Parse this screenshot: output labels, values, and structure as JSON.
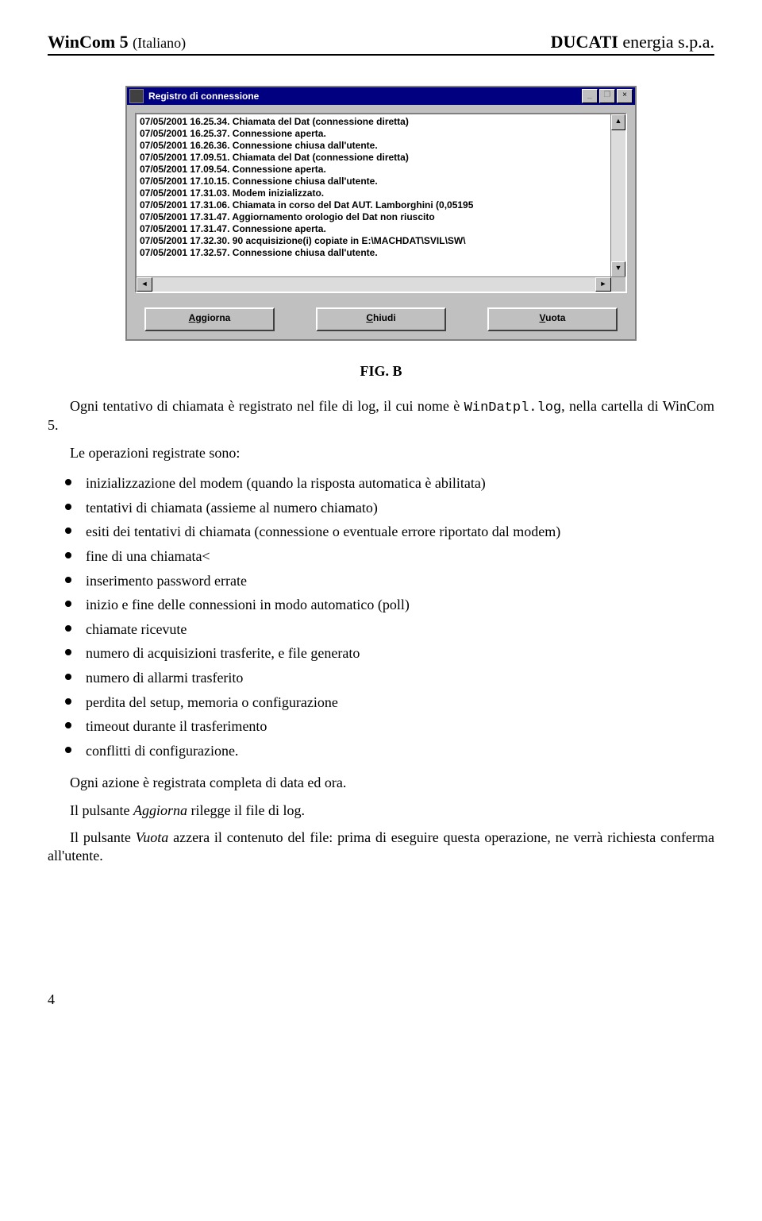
{
  "header": {
    "product": "WinCom 5",
    "lang": "(Italiano)",
    "company_brand": "DUCATI",
    "company_suffix": " energia s.p.a."
  },
  "window": {
    "title": "Registro di connessione",
    "log_lines": [
      "07/05/2001 16.25.34. Chiamata del Dat (connessione diretta)",
      "07/05/2001 16.25.37. Connessione aperta.",
      "07/05/2001 16.26.36. Connessione chiusa dall'utente.",
      "07/05/2001 17.09.51. Chiamata del Dat (connessione diretta)",
      "07/05/2001 17.09.54. Connessione aperta.",
      "07/05/2001 17.10.15. Connessione chiusa dall'utente.",
      "07/05/2001 17.31.03. Modem inizializzato.",
      "07/05/2001 17.31.06. Chiamata in corso del Dat  AUT.  Lamborghini (0,05195",
      "07/05/2001 17.31.47. Aggiornamento orologio del Dat non riuscito",
      "07/05/2001 17.31.47. Connessione aperta.",
      "07/05/2001 17.32.30. 90 acquisizione(i) copiate in E:\\MACHDAT\\SVIL\\SW\\",
      "07/05/2001 17.32.57. Connessione chiusa dall'utente."
    ],
    "buttons": {
      "refresh_u": "A",
      "refresh_rest": "ggiorna",
      "close_u": "C",
      "close_rest": "hiudi",
      "empty_u": "V",
      "empty_rest": "uota"
    },
    "title_controls": {
      "min": "_",
      "max": "❐",
      "close": "×"
    }
  },
  "figure_caption": "FIG. B",
  "intro_part1": "Ogni tentativo di chiamata è registrato nel file di log, il cui nome è ",
  "intro_code": "WinDatpl.log",
  "intro_part2": ", nella cartella di WinCom 5.",
  "ops_intro": "Le operazioni registrate sono:",
  "bullets": [
    "inizializzazione del modem (quando la risposta automatica è abilitata)",
    "tentativi di chiamata (assieme al numero chiamato)",
    "esiti dei tentativi di chiamata (connessione o eventuale errore riportato dal modem)",
    "fine di una chiamata<",
    "inserimento password errate",
    "inizio e fine delle connessioni in modo automatico (poll)",
    "chiamate ricevute",
    "numero di acquisizioni trasferite, e file generato",
    "numero di allarmi trasferito",
    "perdita del setup, memoria o configurazione",
    "timeout durante il trasferimento",
    "conflitti di configurazione."
  ],
  "tail_paragraphs": {
    "p1": "Ogni azione è registrata completa di data ed ora.",
    "p2_pre": "Il pulsante ",
    "p2_em": "Aggiorna",
    "p2_post": " rilegge il file di log.",
    "p3_pre": "Il pulsante ",
    "p3_em": "Vuota",
    "p3_post": " azzera il contenuto del file: prima di eseguire questa operazione, ne verrà richiesta conferma all'utente."
  },
  "page_number": "4",
  "styling": {
    "page_bg": "#ffffff",
    "text_color": "#000000",
    "rule_color": "#000000",
    "titlebar_bg": "#000080",
    "titlebar_fg": "#ffffff",
    "window_face": "#c0c0c0",
    "log_bg": "#ffffff",
    "body_font": "Times New Roman",
    "ui_font": "MS Sans Serif",
    "body_fontsize_pt": 13,
    "ui_fontsize_pt": 9
  }
}
